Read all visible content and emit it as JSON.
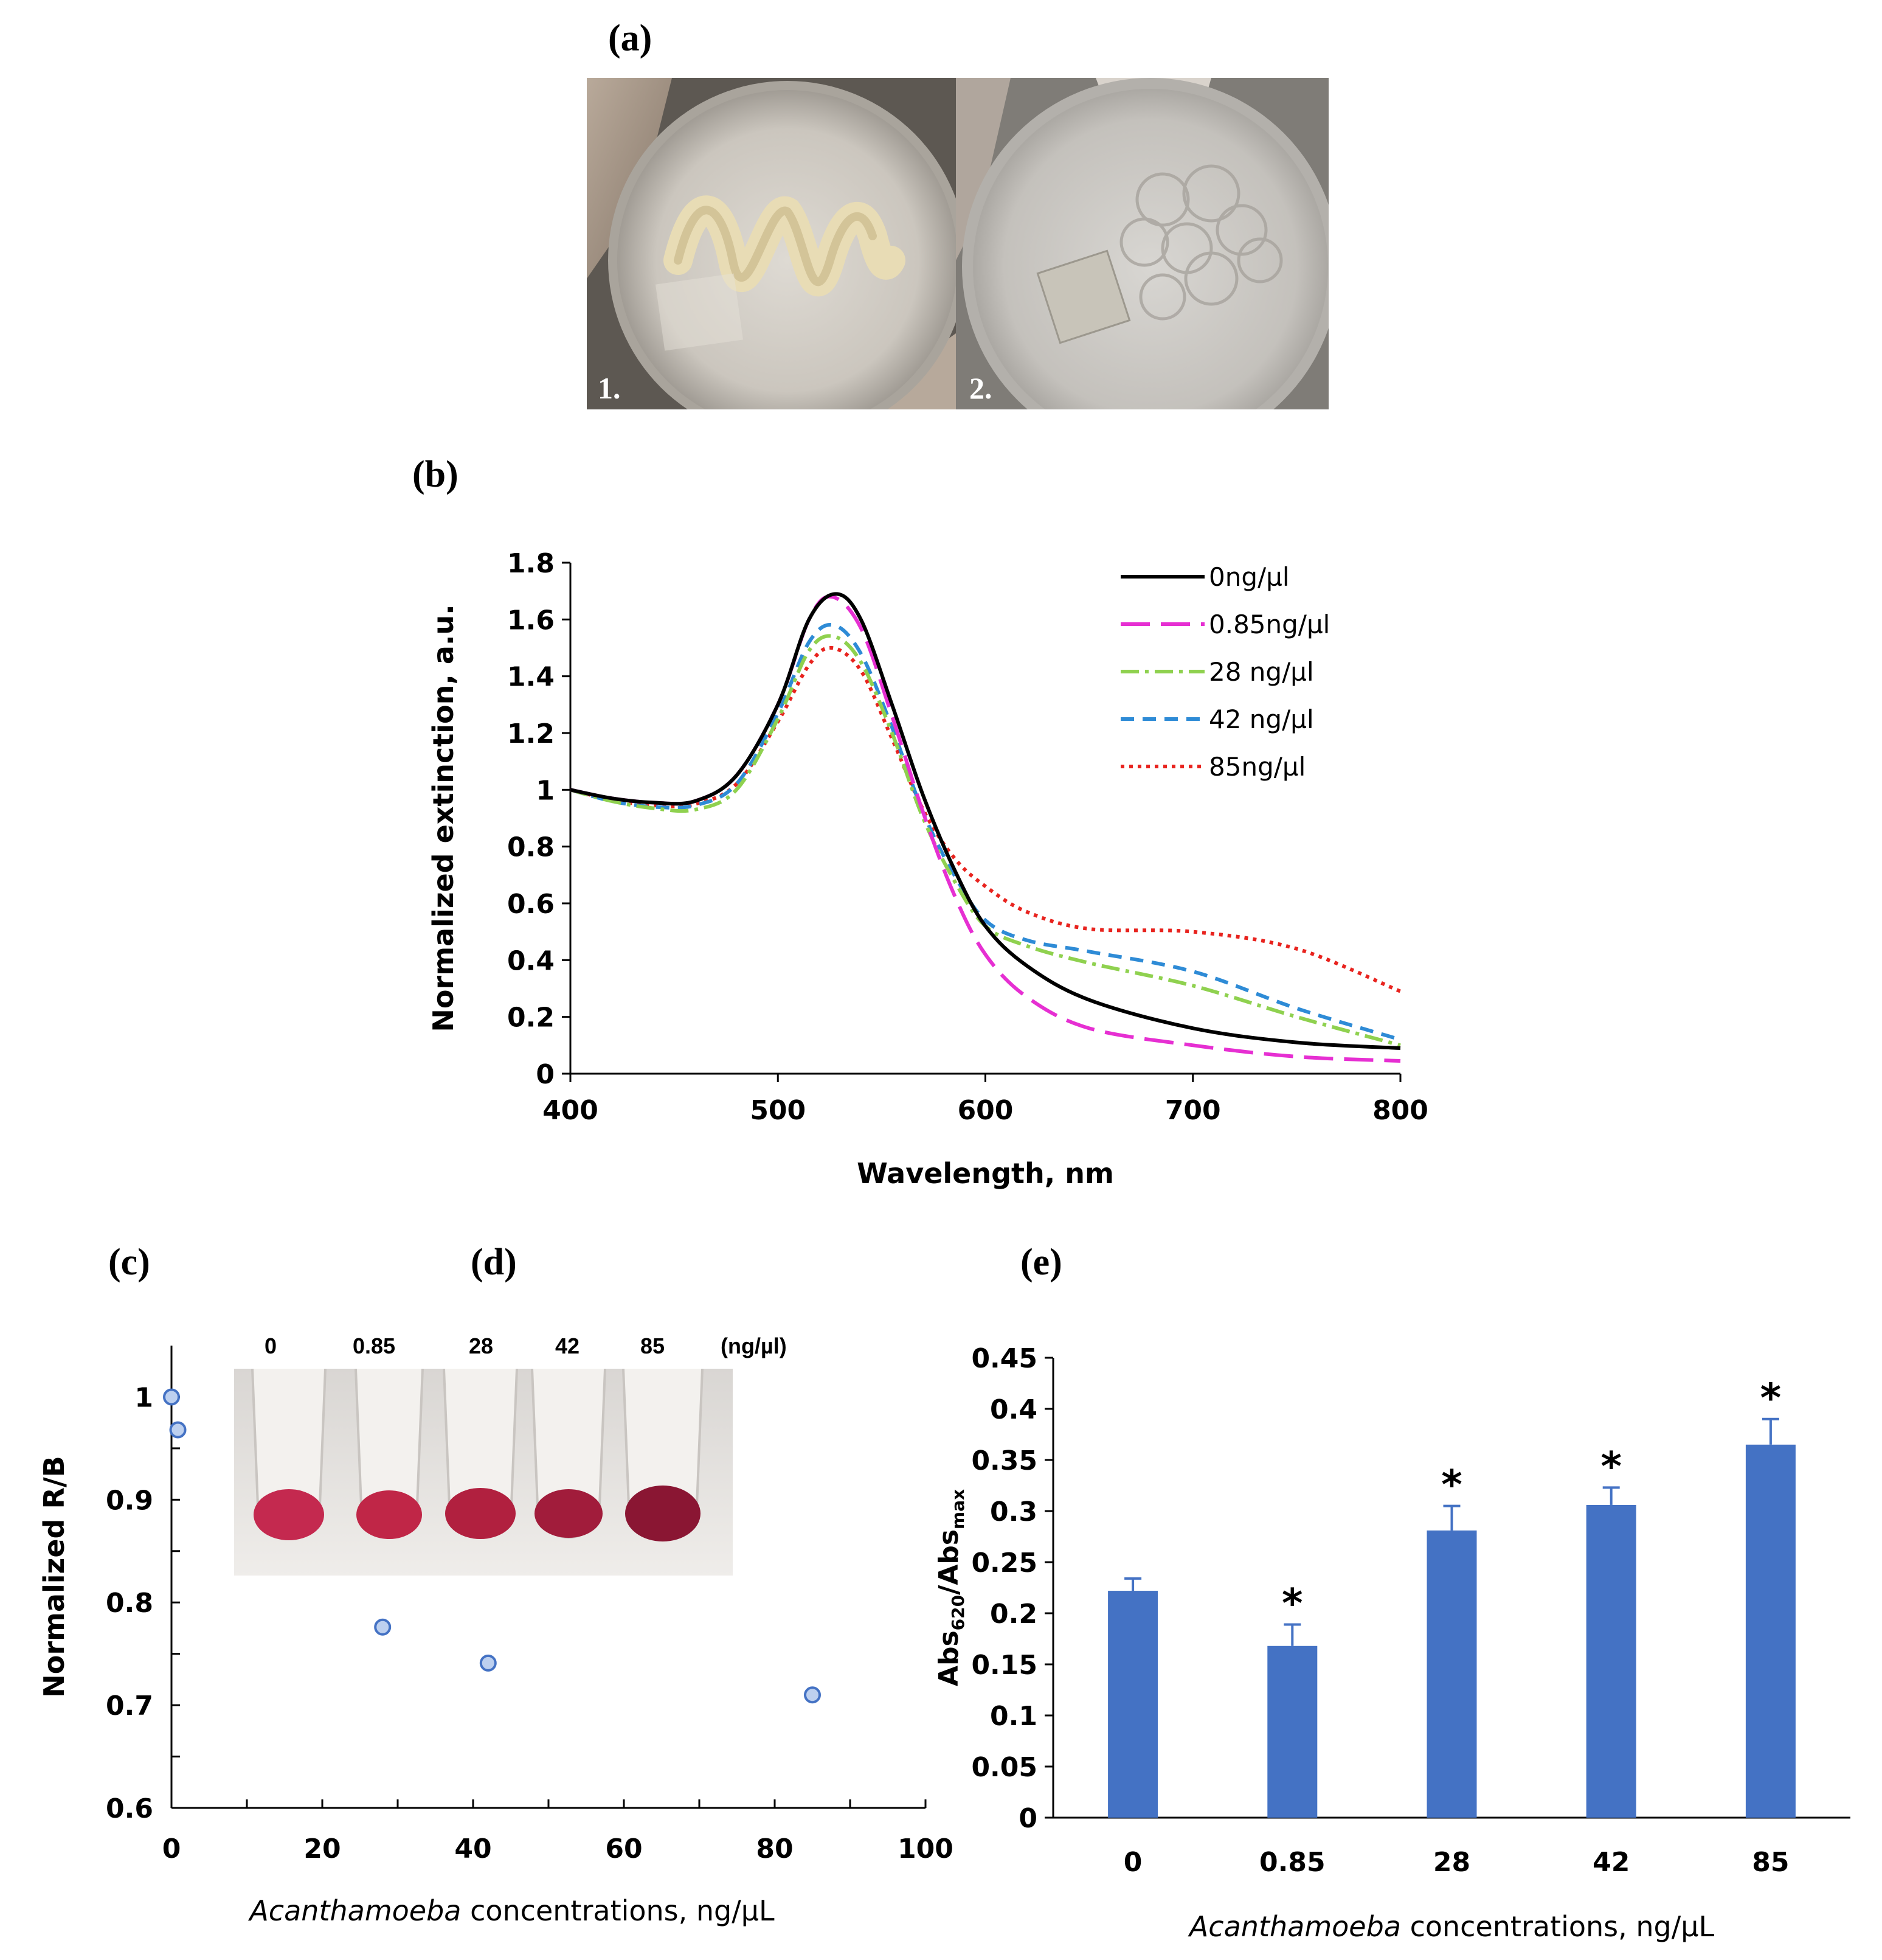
{
  "panel_labels": {
    "a": "(a)",
    "b": "(b)",
    "c": "(c)",
    "d": "(d)",
    "e": "(e)"
  },
  "photos": {
    "a1": {
      "label": "1."
    },
    "a2": {
      "label": "2."
    }
  },
  "tubes": {
    "concentrations": [
      "0",
      "0.85",
      "28",
      "42",
      "85"
    ],
    "unit": "(ng/µl)"
  },
  "colors": {
    "bar": "#4472c4",
    "scatter_fill": "#bdd0ef",
    "scatter_stroke": "#4472c4"
  },
  "chart_data": [
    {
      "id": "b",
      "type": "line",
      "xlabel": "Wavelength, nm",
      "ylabel": "Normalized extinction, a.u.",
      "xlim": [
        400,
        800
      ],
      "ylim": [
        0,
        1.8
      ],
      "xticks": [
        400,
        500,
        600,
        700,
        800
      ],
      "yticks": [
        "0",
        "0.2",
        "0.4",
        "0.6",
        "0.8",
        "1",
        "1.2",
        "1.4",
        "1.6",
        "1.8"
      ],
      "legend_position": "top-right",
      "grid": false,
      "series": [
        {
          "name": "0ng/µl",
          "color": "#000000",
          "style": "solid",
          "points": [
            [
              400,
              1.0
            ],
            [
              420,
              0.97
            ],
            [
              440,
              0.955
            ],
            [
              460,
              0.96
            ],
            [
              480,
              1.05
            ],
            [
              500,
              1.3
            ],
            [
              515,
              1.6
            ],
            [
              528,
              1.69
            ],
            [
              540,
              1.6
            ],
            [
              555,
              1.3
            ],
            [
              570,
              0.98
            ],
            [
              585,
              0.72
            ],
            [
              600,
              0.52
            ],
            [
              620,
              0.38
            ],
            [
              650,
              0.26
            ],
            [
              700,
              0.16
            ],
            [
              750,
              0.11
            ],
            [
              800,
              0.09
            ]
          ]
        },
        {
          "name": "0.85ng/µl",
          "color": "#e62fd2",
          "style": "longdash",
          "points": [
            [
              400,
              1.0
            ],
            [
              420,
              0.97
            ],
            [
              440,
              0.955
            ],
            [
              460,
              0.96
            ],
            [
              480,
              1.05
            ],
            [
              500,
              1.3
            ],
            [
              515,
              1.6
            ],
            [
              526,
              1.68
            ],
            [
              540,
              1.57
            ],
            [
              555,
              1.26
            ],
            [
              570,
              0.92
            ],
            [
              585,
              0.63
            ],
            [
              600,
              0.42
            ],
            [
              620,
              0.27
            ],
            [
              650,
              0.16
            ],
            [
              700,
              0.1
            ],
            [
              750,
              0.06
            ],
            [
              800,
              0.045
            ]
          ]
        },
        {
          "name": "28 ng/µl",
          "color": "#8fd14f",
          "style": "dashdot",
          "points": [
            [
              400,
              1.0
            ],
            [
              420,
              0.96
            ],
            [
              440,
              0.935
            ],
            [
              460,
              0.93
            ],
            [
              480,
              1.0
            ],
            [
              500,
              1.25
            ],
            [
              515,
              1.49
            ],
            [
              527,
              1.54
            ],
            [
              540,
              1.45
            ],
            [
              555,
              1.2
            ],
            [
              570,
              0.9
            ],
            [
              585,
              0.68
            ],
            [
              600,
              0.52
            ],
            [
              620,
              0.45
            ],
            [
              650,
              0.39
            ],
            [
              700,
              0.31
            ],
            [
              750,
              0.2
            ],
            [
              800,
              0.1
            ]
          ]
        },
        {
          "name": "42 ng/µl",
          "color": "#2e8bd6",
          "style": "dash",
          "points": [
            [
              400,
              1.0
            ],
            [
              420,
              0.96
            ],
            [
              440,
              0.94
            ],
            [
              460,
              0.945
            ],
            [
              480,
              1.02
            ],
            [
              500,
              1.27
            ],
            [
              515,
              1.52
            ],
            [
              527,
              1.58
            ],
            [
              540,
              1.48
            ],
            [
              555,
              1.22
            ],
            [
              570,
              0.92
            ],
            [
              585,
              0.7
            ],
            [
              600,
              0.54
            ],
            [
              620,
              0.47
            ],
            [
              650,
              0.43
            ],
            [
              700,
              0.36
            ],
            [
              750,
              0.23
            ],
            [
              800,
              0.12
            ]
          ]
        },
        {
          "name": "85ng/µl",
          "color": "#e8231e",
          "style": "dot",
          "points": [
            [
              400,
              1.0
            ],
            [
              420,
              0.965
            ],
            [
              440,
              0.945
            ],
            [
              460,
              0.95
            ],
            [
              480,
              1.02
            ],
            [
              500,
              1.24
            ],
            [
              515,
              1.44
            ],
            [
              526,
              1.5
            ],
            [
              540,
              1.42
            ],
            [
              555,
              1.18
            ],
            [
              570,
              0.93
            ],
            [
              585,
              0.76
            ],
            [
              600,
              0.66
            ],
            [
              620,
              0.57
            ],
            [
              650,
              0.51
            ],
            [
              700,
              0.5
            ],
            [
              750,
              0.44
            ],
            [
              800,
              0.29
            ]
          ]
        }
      ]
    },
    {
      "id": "c",
      "type": "scatter",
      "xlabel_italic": "Acanthamoeba",
      "xlabel_rest": " concentrations, ng/µL",
      "ylabel": "Normalized R/B",
      "xlim": [
        0,
        100
      ],
      "ylim": [
        0.6,
        1.05
      ],
      "xticks": [
        "0",
        "20",
        "40",
        "60",
        "80",
        "100"
      ],
      "yticks": [
        "0.6",
        "0.7",
        "0.8",
        "0.9",
        "1"
      ],
      "points": [
        [
          0,
          1.0
        ],
        [
          0.85,
          0.968
        ],
        [
          28,
          0.776
        ],
        [
          42,
          0.741
        ],
        [
          85,
          0.71
        ]
      ]
    },
    {
      "id": "e",
      "type": "bar",
      "xlabel_italic": "Acanthamoeba",
      "xlabel_rest": " concentrations, ng/µL",
      "ylabel_main": "Abs",
      "ylabel_sub1": "620",
      "ylabel_mid": "/Abs",
      "ylabel_sub2": "max",
      "ylim": [
        0,
        0.45
      ],
      "yticks": [
        "0",
        "0.05",
        "0.1",
        "0.15",
        "0.2",
        "0.25",
        "0.3",
        "0.35",
        "0.4",
        "0.45"
      ],
      "categories": [
        "0",
        "0.85",
        "28",
        "42",
        "85"
      ],
      "values": [
        0.222,
        0.168,
        0.281,
        0.306,
        0.365
      ],
      "errors": [
        0.012,
        0.021,
        0.024,
        0.017,
        0.025
      ],
      "significance": [
        "",
        "*",
        "*",
        "*",
        "*"
      ]
    }
  ]
}
